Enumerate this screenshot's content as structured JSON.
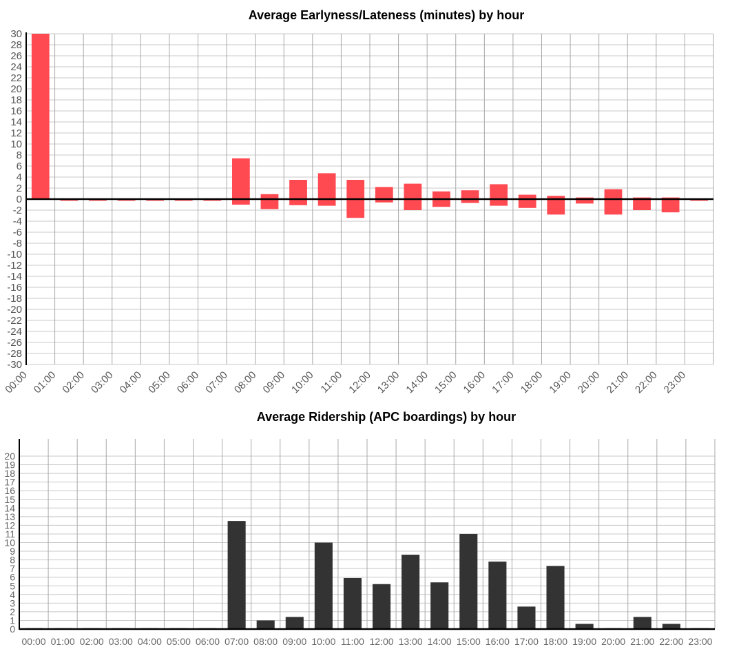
{
  "colors": {
    "lateness_bar": "#ff4a52",
    "ridership_bar": "#333333",
    "grid": "#c8c8c8",
    "axis": "#000000"
  },
  "chart_data": [
    {
      "type": "bar",
      "title": "Average Earlyness/Lateness (minutes) by hour",
      "categories": [
        "00:00",
        "01:00",
        "02:00",
        "03:00",
        "04:00",
        "05:00",
        "06:00",
        "07:00",
        "08:00",
        "09:00",
        "10:00",
        "11:00",
        "12:00",
        "13:00",
        "14:00",
        "15:00",
        "16:00",
        "17:00",
        "18:00",
        "19:00",
        "20:00",
        "21:00",
        "22:00",
        "23:00"
      ],
      "series": [
        {
          "low": [
            0,
            -0.3,
            -0.3,
            -0.3,
            -0.3,
            -0.3,
            -0.3,
            -1.0,
            -1.8,
            -1.1,
            -1.2,
            -3.4,
            -0.6,
            -2.0,
            -1.4,
            -0.7,
            -1.2,
            -1.6,
            -2.8,
            -0.8,
            -2.8,
            -2.0,
            -2.4,
            -0.3
          ],
          "high": [
            33,
            0,
            0,
            0,
            0,
            0,
            0,
            7.4,
            0.9,
            3.5,
            4.7,
            3.5,
            2.2,
            2.8,
            1.4,
            1.6,
            2.7,
            0.8,
            0.6,
            0.3,
            1.8,
            0.3,
            0.3,
            0
          ]
        }
      ],
      "ylim": [
        -30,
        30
      ],
      "yticks": [
        30,
        28,
        26,
        24,
        22,
        20,
        18,
        16,
        14,
        12,
        10,
        8,
        6,
        4,
        2,
        0,
        -2,
        -4,
        -6,
        -8,
        -10,
        -12,
        -14,
        -16,
        -18,
        -20,
        -22,
        -24,
        -26,
        -28,
        -30
      ],
      "grid": true
    },
    {
      "type": "bar",
      "title": "Average Ridership (APC boardings) by hour",
      "categories": [
        "00:00",
        "01:00",
        "02:00",
        "03:00",
        "04:00",
        "05:00",
        "06:00",
        "07:00",
        "08:00",
        "09:00",
        "10:00",
        "11:00",
        "12:00",
        "13:00",
        "14:00",
        "15:00",
        "16:00",
        "17:00",
        "18:00",
        "19:00",
        "20:00",
        "21:00",
        "22:00",
        "23:00"
      ],
      "series": [
        {
          "values": [
            0.1,
            0.1,
            0.1,
            0.1,
            0.1,
            0.1,
            0.1,
            12.5,
            1.0,
            1.4,
            10.0,
            5.9,
            5.2,
            8.6,
            5.4,
            11.0,
            7.8,
            2.6,
            7.3,
            0.6,
            0.1,
            1.4,
            0.6,
            0.1
          ]
        }
      ],
      "ylim": [
        0,
        20
      ],
      "yticks": [
        20,
        19,
        18,
        17,
        16,
        15,
        14,
        13,
        12,
        11,
        10,
        9,
        8,
        7,
        6,
        5,
        4,
        3,
        2,
        1,
        0
      ],
      "grid": true
    }
  ]
}
